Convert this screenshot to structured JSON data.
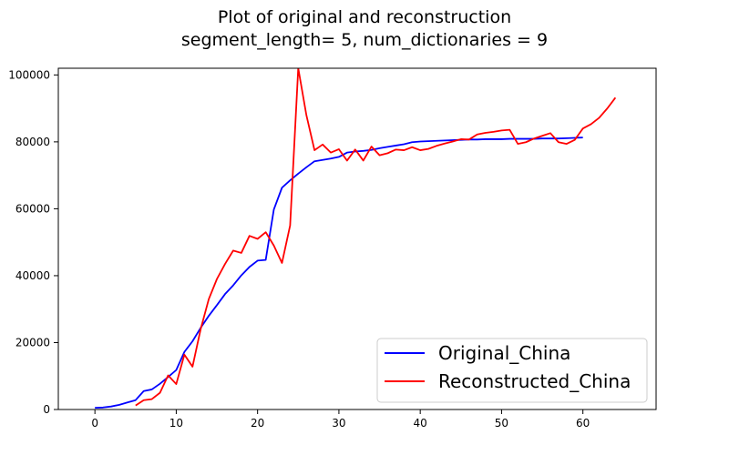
{
  "chart_data": {
    "type": "line",
    "title": "Plot of original and reconstruction",
    "subtitle": "segment_length= 5, num_dictionaries = 9",
    "xlabel": "",
    "ylabel": "",
    "xlim": [
      -4.5,
      69
    ],
    "ylim": [
      0,
      102000
    ],
    "x_ticks": [
      0,
      10,
      20,
      30,
      40,
      50,
      60
    ],
    "y_ticks": [
      0,
      20000,
      40000,
      60000,
      80000,
      100000
    ],
    "grid": false,
    "legend": "lower-right",
    "series": [
      {
        "name": "Original_China",
        "color": "#0000ff",
        "x": [
          0,
          1,
          2,
          3,
          4,
          5,
          6,
          7,
          8,
          9,
          10,
          11,
          12,
          13,
          14,
          15,
          16,
          17,
          18,
          19,
          20,
          21,
          22,
          23,
          24,
          25,
          26,
          27,
          28,
          29,
          30,
          31,
          32,
          33,
          34,
          35,
          36,
          37,
          38,
          39,
          40,
          41,
          42,
          43,
          44,
          45,
          46,
          47,
          48,
          49,
          50,
          51,
          52,
          53,
          54,
          55,
          56,
          57,
          58,
          59,
          60
        ],
        "values": [
          500,
          600,
          900,
          1400,
          2100,
          2800,
          5500,
          6000,
          7700,
          9700,
          11800,
          17200,
          20400,
          24400,
          28000,
          31200,
          34500,
          37100,
          40100,
          42600,
          44500,
          44700,
          59800,
          66300,
          68500,
          70500,
          72400,
          74200,
          74600,
          75000,
          75500,
          76800,
          77100,
          77300,
          77600,
          78100,
          78500,
          78900,
          79300,
          79900,
          80100,
          80200,
          80300,
          80400,
          80500,
          80600,
          80700,
          80700,
          80800,
          80800,
          80800,
          80900,
          80900,
          80900,
          80900,
          81000,
          81000,
          81000,
          81100,
          81200,
          81300
        ]
      },
      {
        "name": "Reconstructed_China",
        "color": "#ff0000",
        "x": [
          5,
          6,
          7,
          8,
          9,
          10,
          11,
          12,
          13,
          14,
          15,
          16,
          17,
          18,
          19,
          20,
          21,
          22,
          23,
          24,
          25,
          26,
          27,
          28,
          29,
          30,
          31,
          32,
          33,
          34,
          35,
          36,
          37,
          38,
          39,
          40,
          41,
          42,
          43,
          44,
          45,
          46,
          47,
          48,
          49,
          50,
          51,
          52,
          53,
          54,
          55,
          56,
          57,
          58,
          59,
          60,
          61,
          62,
          63,
          64
        ],
        "values": [
          1200,
          2800,
          3100,
          5000,
          10200,
          7600,
          16400,
          12800,
          24000,
          33000,
          39000,
          43500,
          47500,
          46800,
          51900,
          51000,
          53000,
          49000,
          43800,
          55000,
          102000,
          88000,
          77500,
          79200,
          76800,
          77800,
          74400,
          77700,
          74400,
          78600,
          76000,
          76600,
          77700,
          77500,
          78400,
          77500,
          77900,
          78800,
          79500,
          80100,
          80800,
          80700,
          82200,
          82700,
          83000,
          83400,
          83600,
          79400,
          79900,
          81000,
          81800,
          82600,
          79900,
          79400,
          80600,
          84000,
          85300,
          87200,
          90000,
          93200
        ]
      }
    ]
  }
}
